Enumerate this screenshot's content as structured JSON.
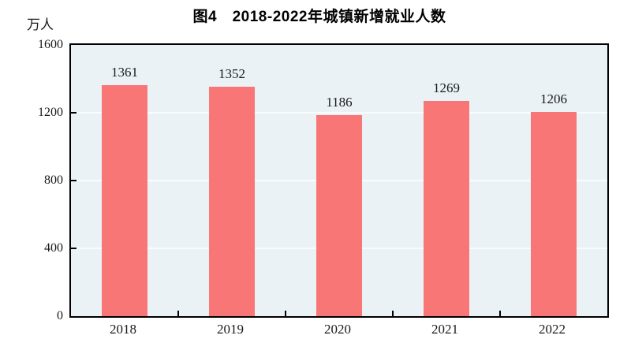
{
  "chart_data": {
    "type": "bar",
    "title": "图4　2018-2022年城镇新增就业人数",
    "ylabel": "万人",
    "xlabel": "",
    "categories": [
      "2018",
      "2019",
      "2020",
      "2021",
      "2022"
    ],
    "values": [
      1361,
      1352,
      1186,
      1269,
      1206
    ],
    "ylim": [
      0,
      1600
    ],
    "yticks": [
      0,
      400,
      800,
      1200,
      1600
    ],
    "grid": "horizontal",
    "legend": "none",
    "colors": {
      "bar": "#F97676",
      "plot_background": "#EBF2F6",
      "gridline": "#F8FCFE",
      "axis": "#000000",
      "text": "#1A1A1A"
    }
  }
}
